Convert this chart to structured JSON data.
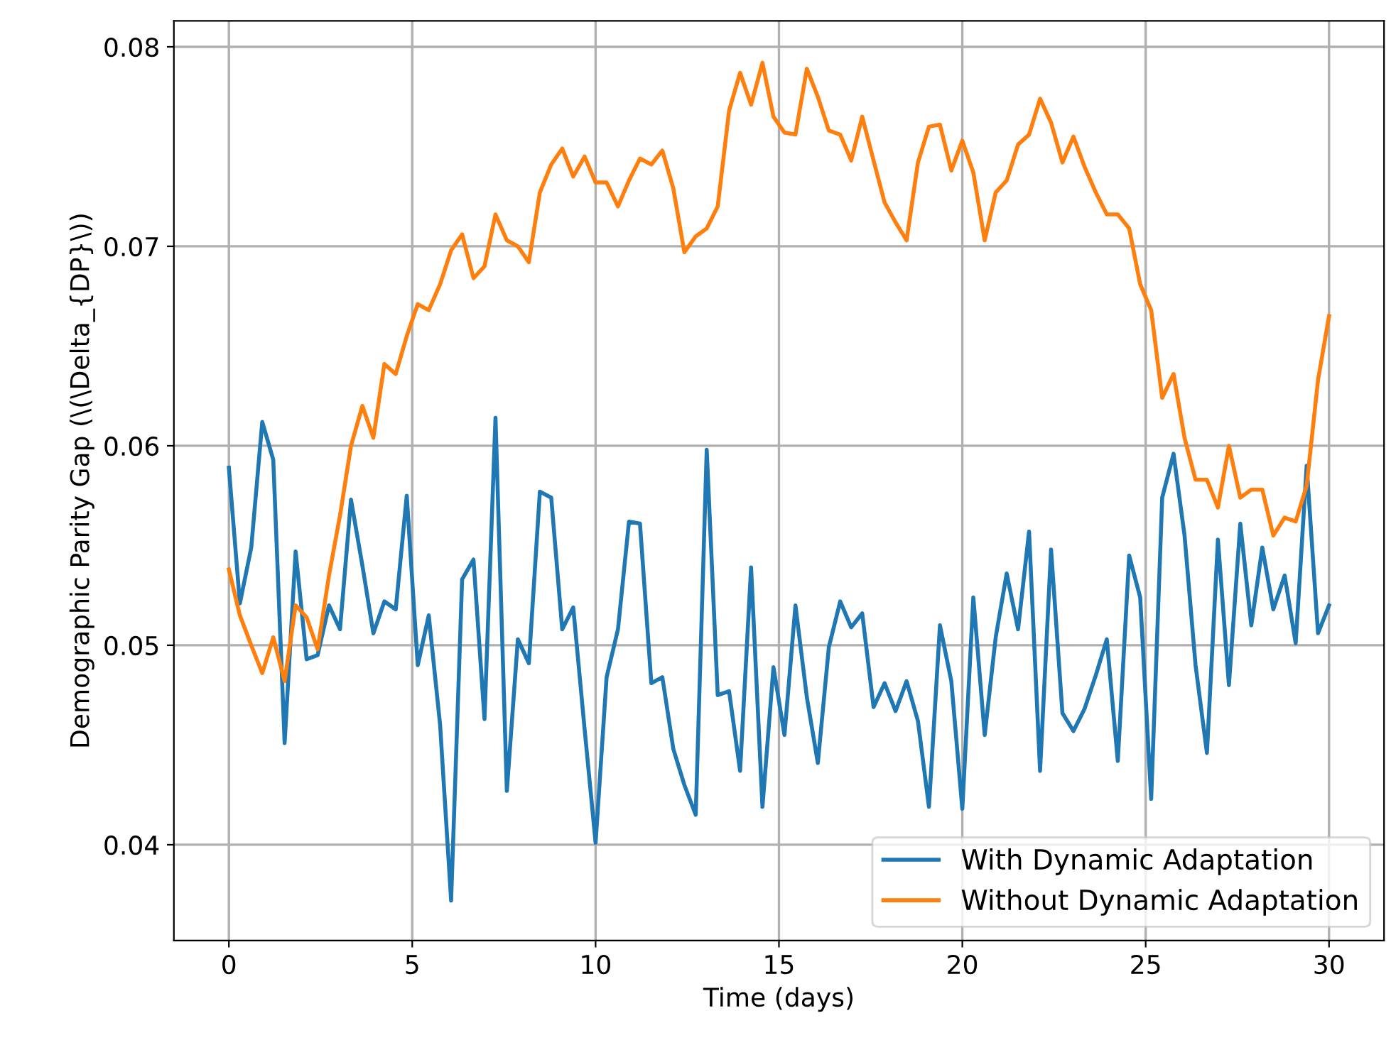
{
  "chart_data": {
    "type": "line",
    "xlabel": "Time (days)",
    "ylabel": "Demographic Parity Gap (\\(\\Delta_{DP}\\))",
    "x": [
      0,
      0.3,
      0.61,
      0.91,
      1.21,
      1.52,
      1.82,
      2.12,
      2.42,
      2.73,
      3.03,
      3.33,
      3.64,
      3.94,
      4.24,
      4.55,
      4.85,
      5.15,
      5.45,
      5.76,
      6.06,
      6.36,
      6.67,
      6.97,
      7.27,
      7.58,
      7.88,
      8.18,
      8.48,
      8.79,
      9.09,
      9.39,
      9.7,
      10.0,
      10.3,
      10.61,
      10.91,
      11.21,
      11.52,
      11.82,
      12.12,
      12.42,
      12.73,
      13.03,
      13.33,
      13.64,
      13.94,
      14.24,
      14.55,
      14.85,
      15.15,
      15.45,
      15.76,
      16.06,
      16.36,
      16.67,
      16.97,
      17.27,
      17.58,
      17.88,
      18.18,
      18.48,
      18.79,
      19.09,
      19.39,
      19.7,
      20.0,
      20.3,
      20.61,
      20.91,
      21.21,
      21.52,
      21.82,
      22.12,
      22.42,
      22.73,
      23.03,
      23.33,
      23.64,
      23.94,
      24.24,
      24.55,
      24.85,
      25.15,
      25.45,
      25.76,
      26.06,
      26.36,
      26.67,
      26.97,
      27.27,
      27.58,
      27.88,
      28.18,
      28.48,
      28.79,
      29.09,
      29.39,
      29.7,
      30.0
    ],
    "series": [
      {
        "name": "With Dynamic Adaptation",
        "color": "#1f77b4",
        "values": [
          0.0589,
          0.0521,
          0.0549,
          0.0612,
          0.0593,
          0.0451,
          0.0547,
          0.0493,
          0.0495,
          0.052,
          0.0508,
          0.0573,
          0.054,
          0.0506,
          0.0522,
          0.0518,
          0.0575,
          0.049,
          0.0515,
          0.046,
          0.0372,
          0.0533,
          0.0543,
          0.0463,
          0.0614,
          0.0427,
          0.0503,
          0.0491,
          0.0577,
          0.0574,
          0.0508,
          0.0519,
          0.0458,
          0.0401,
          0.0484,
          0.0508,
          0.0562,
          0.0561,
          0.0481,
          0.0484,
          0.0448,
          0.043,
          0.0415,
          0.0598,
          0.0475,
          0.0477,
          0.0437,
          0.0539,
          0.0419,
          0.0489,
          0.0455,
          0.052,
          0.0474,
          0.0441,
          0.0499,
          0.0522,
          0.0509,
          0.0516,
          0.0469,
          0.0481,
          0.0467,
          0.0482,
          0.0462,
          0.0419,
          0.051,
          0.0482,
          0.0418,
          0.0524,
          0.0455,
          0.0504,
          0.0536,
          0.0508,
          0.0557,
          0.0437,
          0.0548,
          0.0466,
          0.0457,
          0.0468,
          0.0485,
          0.0503,
          0.0442,
          0.0545,
          0.0524,
          0.0423,
          0.0574,
          0.0596,
          0.0555,
          0.049,
          0.0446,
          0.0553,
          0.048,
          0.0561,
          0.051,
          0.0549,
          0.0518,
          0.0535,
          0.0501,
          0.059,
          0.0506,
          0.052
        ]
      },
      {
        "name": "Without Dynamic Adaptation",
        "color": "#ff7f0e",
        "values": [
          0.0538,
          0.0515,
          0.05,
          0.0486,
          0.0504,
          0.0482,
          0.052,
          0.0514,
          0.0498,
          0.0535,
          0.0565,
          0.06,
          0.062,
          0.0604,
          0.0641,
          0.0636,
          0.0655,
          0.0671,
          0.0668,
          0.0681,
          0.0698,
          0.0706,
          0.0684,
          0.069,
          0.0716,
          0.0703,
          0.07,
          0.0692,
          0.0727,
          0.0741,
          0.0749,
          0.0735,
          0.0745,
          0.0732,
          0.0732,
          0.072,
          0.0733,
          0.0744,
          0.0741,
          0.0748,
          0.0729,
          0.0697,
          0.0705,
          0.0709,
          0.072,
          0.0768,
          0.0787,
          0.0771,
          0.0792,
          0.0765,
          0.0757,
          0.0756,
          0.0789,
          0.0775,
          0.0758,
          0.0756,
          0.0743,
          0.0765,
          0.0743,
          0.0722,
          0.0712,
          0.0703,
          0.0742,
          0.076,
          0.0761,
          0.0738,
          0.0753,
          0.0737,
          0.0703,
          0.0727,
          0.0733,
          0.0751,
          0.0756,
          0.0774,
          0.0762,
          0.0742,
          0.0755,
          0.074,
          0.0727,
          0.0716,
          0.0716,
          0.0709,
          0.0681,
          0.0668,
          0.0624,
          0.0636,
          0.0604,
          0.0583,
          0.0583,
          0.0569,
          0.06,
          0.0574,
          0.0578,
          0.0578,
          0.0555,
          0.0564,
          0.0562,
          0.058,
          0.0633,
          0.0665
        ]
      }
    ],
    "xlim": [
      -1.5,
      31.5
    ],
    "xticks": [
      0,
      5,
      10,
      15,
      20,
      25,
      30
    ],
    "ylim": [
      0.0352,
      0.0813
    ],
    "yticks": [
      0.04,
      0.05,
      0.06,
      0.07,
      0.08
    ],
    "grid": true,
    "legend": "lower right",
    "marker": "none",
    "line_style": "solid"
  }
}
